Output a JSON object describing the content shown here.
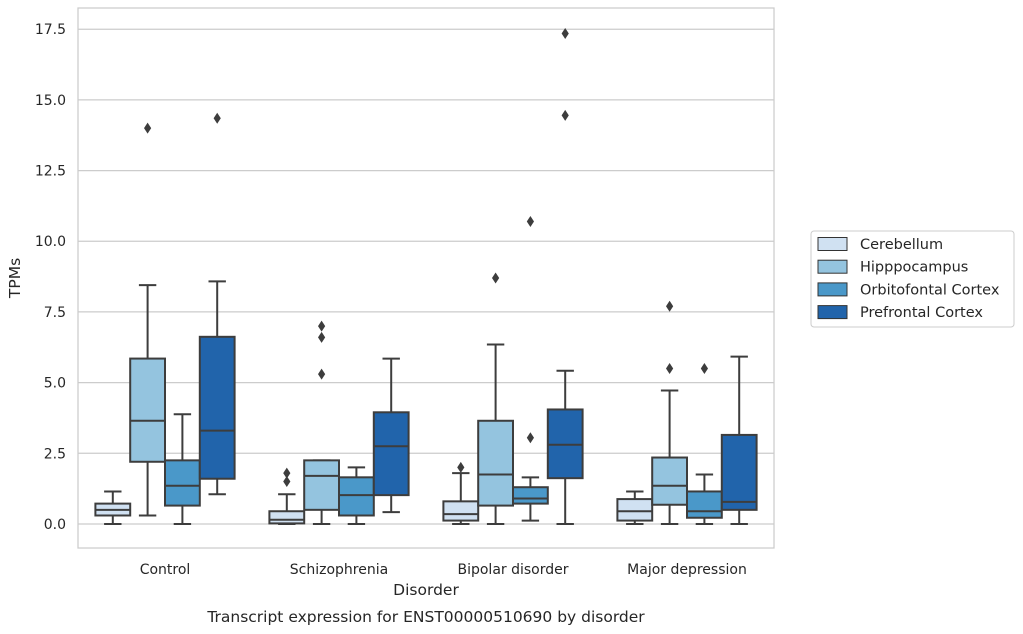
{
  "chart_data": {
    "type": "boxplot",
    "title": "",
    "caption": "Transcript expression for ENST00000510690 by disorder",
    "xlabel": "Disorder",
    "ylabel": "TPMs",
    "ylim": [
      -0.85,
      18.25
    ],
    "yticks": [
      0.0,
      2.5,
      5.0,
      7.5,
      10.0,
      12.5,
      15.0,
      17.5
    ],
    "ytick_labels": [
      "0.0",
      "2.5",
      "5.0",
      "7.5",
      "10.0",
      "12.5",
      "15.0",
      "17.5"
    ],
    "grid": "horizontal",
    "legend_position": "right",
    "categories": [
      "Control",
      "Schizophrenia",
      "Bipolar disorder",
      "Major depression"
    ],
    "series": [
      {
        "name": "Cerebellum",
        "color": "#d0e1f2",
        "boxes": [
          {
            "whislo": 0.0,
            "q1": 0.3,
            "med": 0.5,
            "q3": 0.72,
            "whishi": 1.15,
            "fliers": []
          },
          {
            "whislo": 0.0,
            "q1": 0.02,
            "med": 0.15,
            "q3": 0.45,
            "whishi": 1.05,
            "fliers": [
              1.5,
              1.8
            ]
          },
          {
            "whislo": 0.0,
            "q1": 0.12,
            "med": 0.35,
            "q3": 0.8,
            "whishi": 1.8,
            "fliers": [
              2.0
            ]
          },
          {
            "whislo": 0.0,
            "q1": 0.12,
            "med": 0.45,
            "q3": 0.88,
            "whishi": 1.15,
            "fliers": []
          }
        ]
      },
      {
        "name": "Hipppocampus",
        "color": "#94c4df",
        "boxes": [
          {
            "whislo": 0.3,
            "q1": 2.2,
            "med": 3.65,
            "q3": 5.85,
            "whishi": 8.45,
            "fliers": [
              14.0
            ]
          },
          {
            "whislo": 0.0,
            "q1": 0.5,
            "med": 1.7,
            "q3": 2.25,
            "whishi": 2.25,
            "fliers": [
              5.3,
              6.6,
              7.0
            ]
          },
          {
            "whislo": 0.0,
            "q1": 0.65,
            "med": 1.75,
            "q3": 3.65,
            "whishi": 6.35,
            "fliers": [
              8.7
            ]
          },
          {
            "whislo": 0.0,
            "q1": 0.68,
            "med": 1.35,
            "q3": 2.35,
            "whishi": 4.72,
            "fliers": [
              5.5,
              7.7
            ]
          }
        ]
      },
      {
        "name": "Orbitofontal Cortex",
        "color": "#4a98c9",
        "boxes": [
          {
            "whislo": 0.0,
            "q1": 0.65,
            "med": 1.35,
            "q3": 2.25,
            "whishi": 3.88,
            "fliers": []
          },
          {
            "whislo": 0.0,
            "q1": 0.3,
            "med": 1.02,
            "q3": 1.65,
            "whishi": 2.0,
            "fliers": []
          },
          {
            "whislo": 0.12,
            "q1": 0.72,
            "med": 0.9,
            "q3": 1.3,
            "whishi": 1.65,
            "fliers": [
              3.05,
              10.7
            ]
          },
          {
            "whislo": 0.0,
            "q1": 0.22,
            "med": 0.45,
            "q3": 1.15,
            "whishi": 1.75,
            "fliers": [
              5.5
            ]
          }
        ]
      },
      {
        "name": "Prefrontal Cortex",
        "color": "#2164ab",
        "boxes": [
          {
            "whislo": 1.05,
            "q1": 1.6,
            "med": 3.3,
            "q3": 6.62,
            "whishi": 8.58,
            "fliers": [
              14.35
            ]
          },
          {
            "whislo": 0.42,
            "q1": 1.02,
            "med": 2.75,
            "q3": 3.95,
            "whishi": 5.85,
            "fliers": []
          },
          {
            "whislo": 0.0,
            "q1": 1.62,
            "med": 2.8,
            "q3": 4.05,
            "whishi": 5.42,
            "fliers": [
              14.45,
              17.35
            ]
          },
          {
            "whislo": 0.0,
            "q1": 0.5,
            "med": 0.78,
            "q3": 3.15,
            "whishi": 5.92,
            "fliers": []
          }
        ]
      }
    ]
  }
}
